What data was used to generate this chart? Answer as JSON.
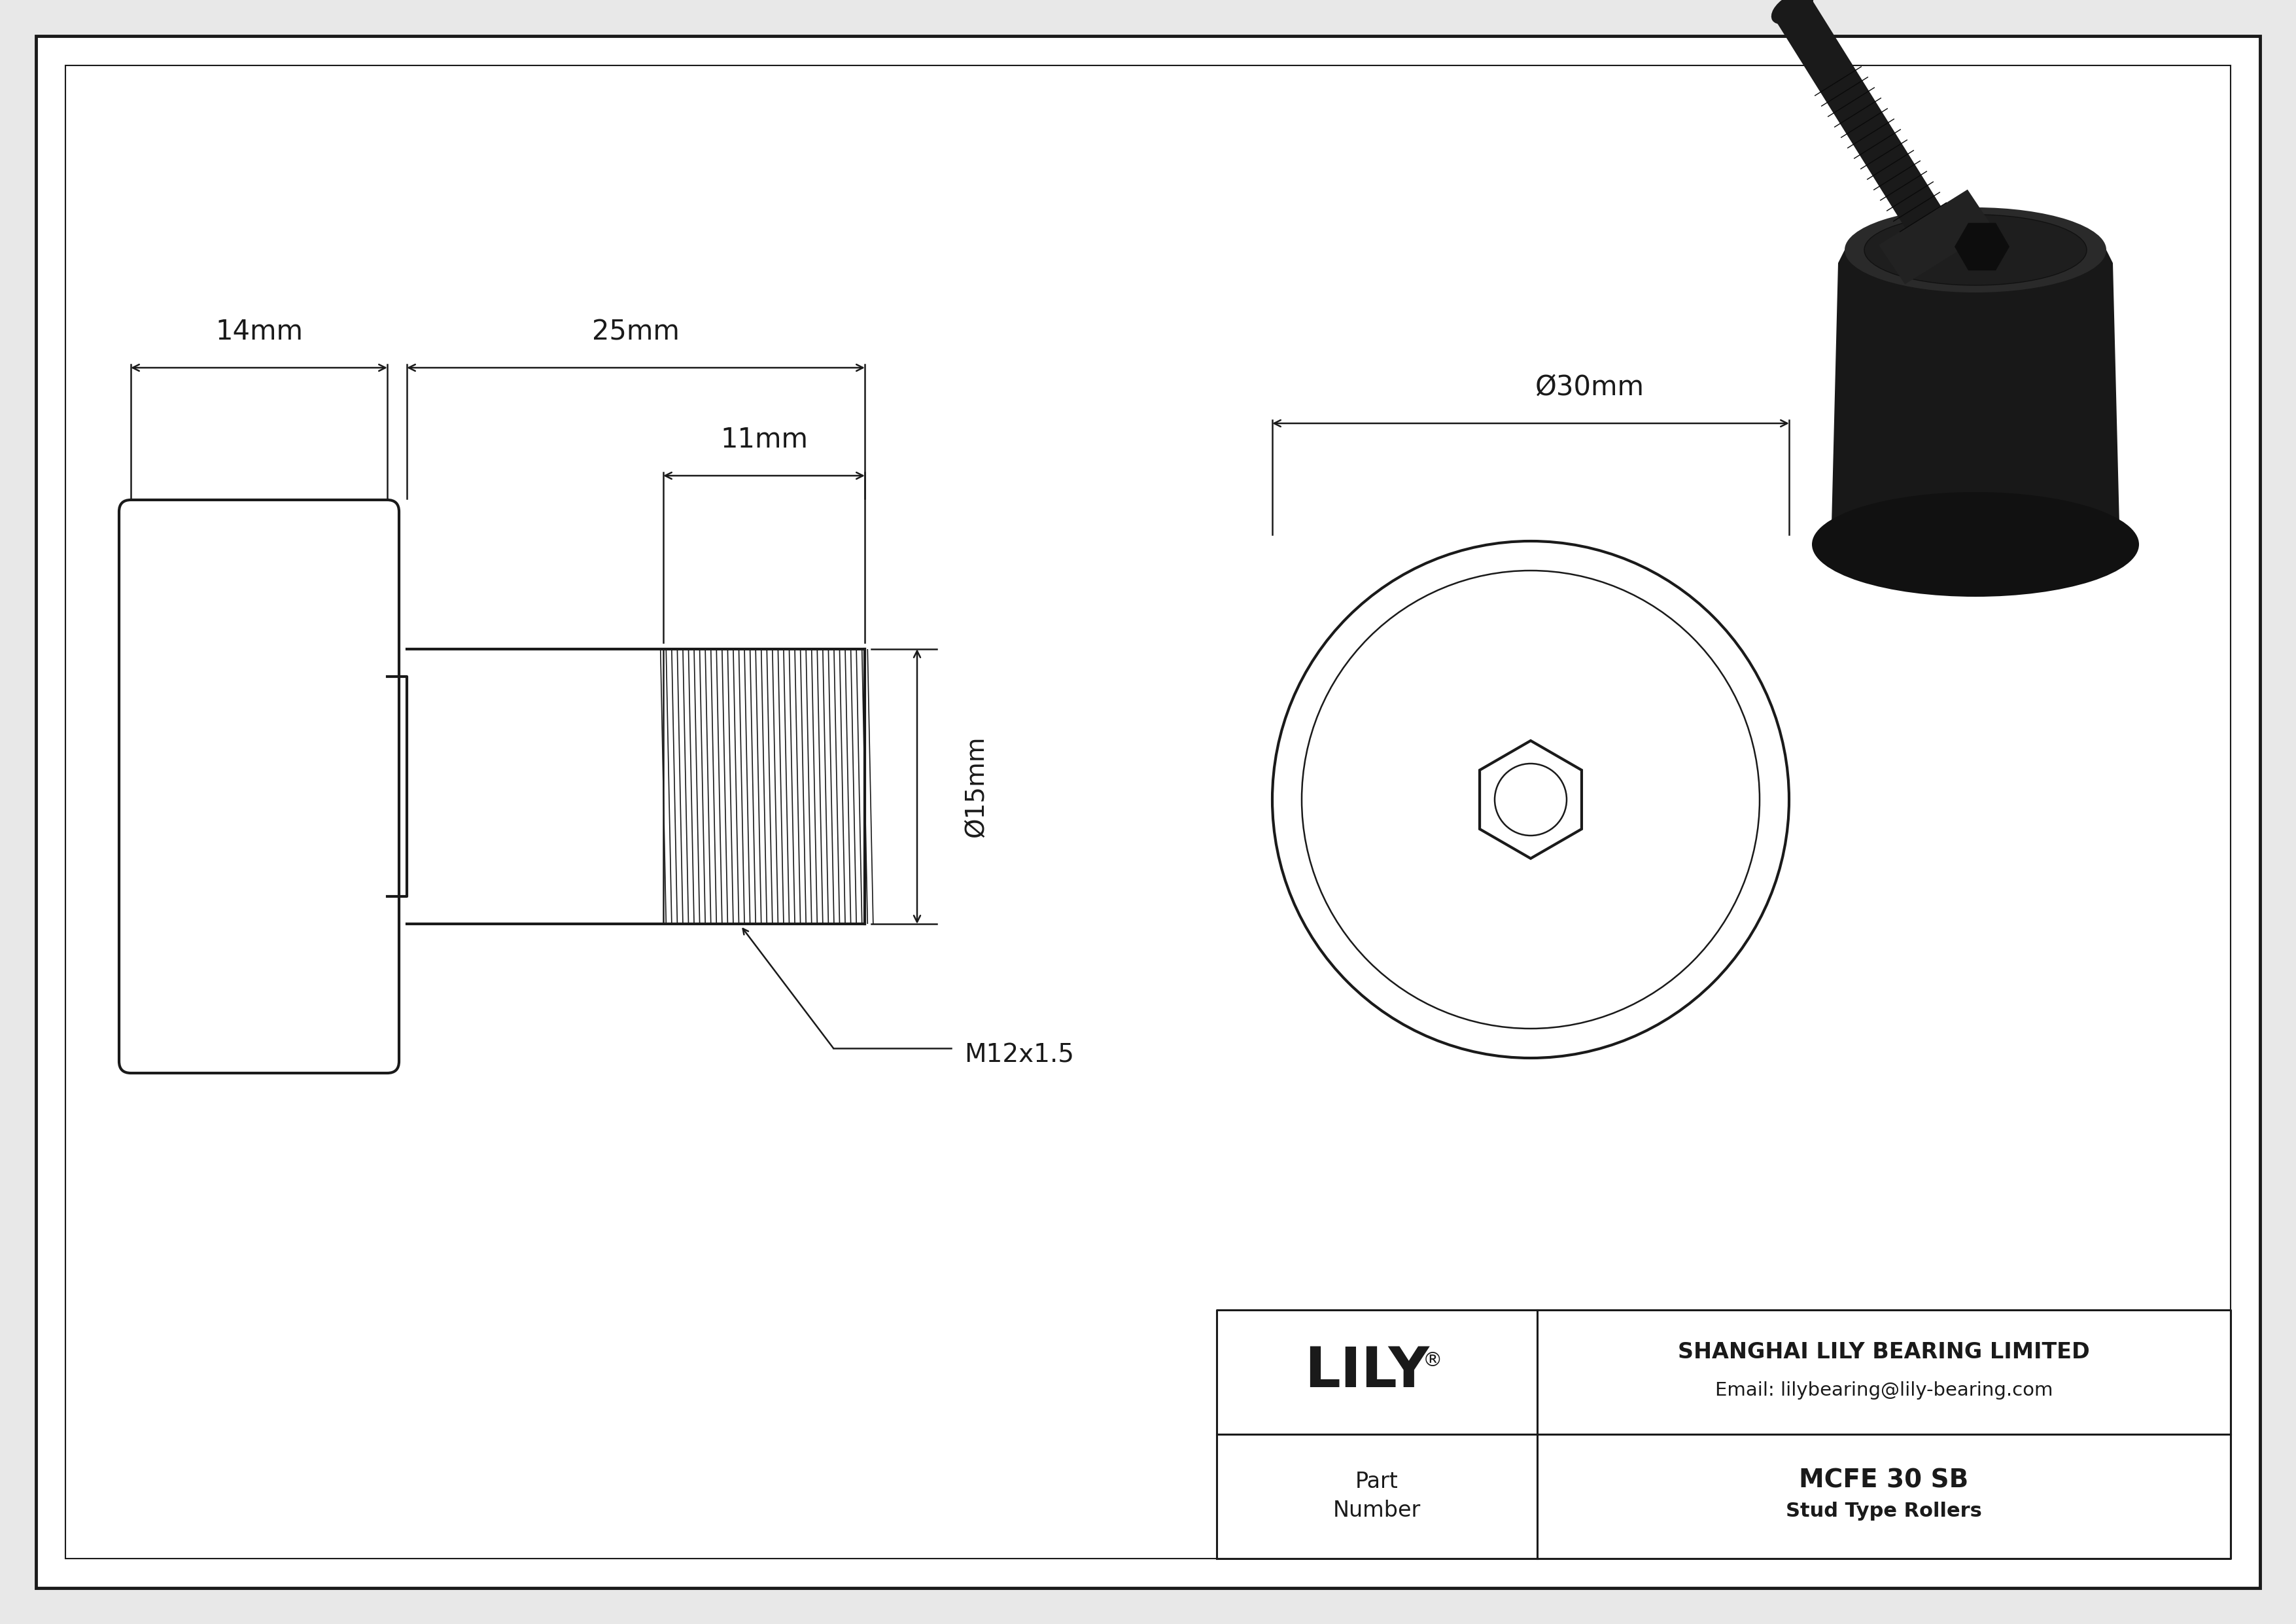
{
  "bg_color": "#e8e8e8",
  "drawing_bg": "#ffffff",
  "line_color": "#1a1a1a",
  "company": "SHANGHAI LILY BEARING LIMITED",
  "email": "Email: lilybearing@lily-bearing.com",
  "part_number": "MCFE 30 SB",
  "part_type": "Stud Type Rollers",
  "dim_14mm": "14mm",
  "dim_25mm": "25mm",
  "dim_11mm": "11mm",
  "dim_15mm": "Ø15mm",
  "dim_30mm": "Ø30mm",
  "thread_label": "M12x1.5",
  "lw": 3.0,
  "lw_thin": 1.8,
  "lw_thread": 1.2,
  "lw_border": 3.5
}
